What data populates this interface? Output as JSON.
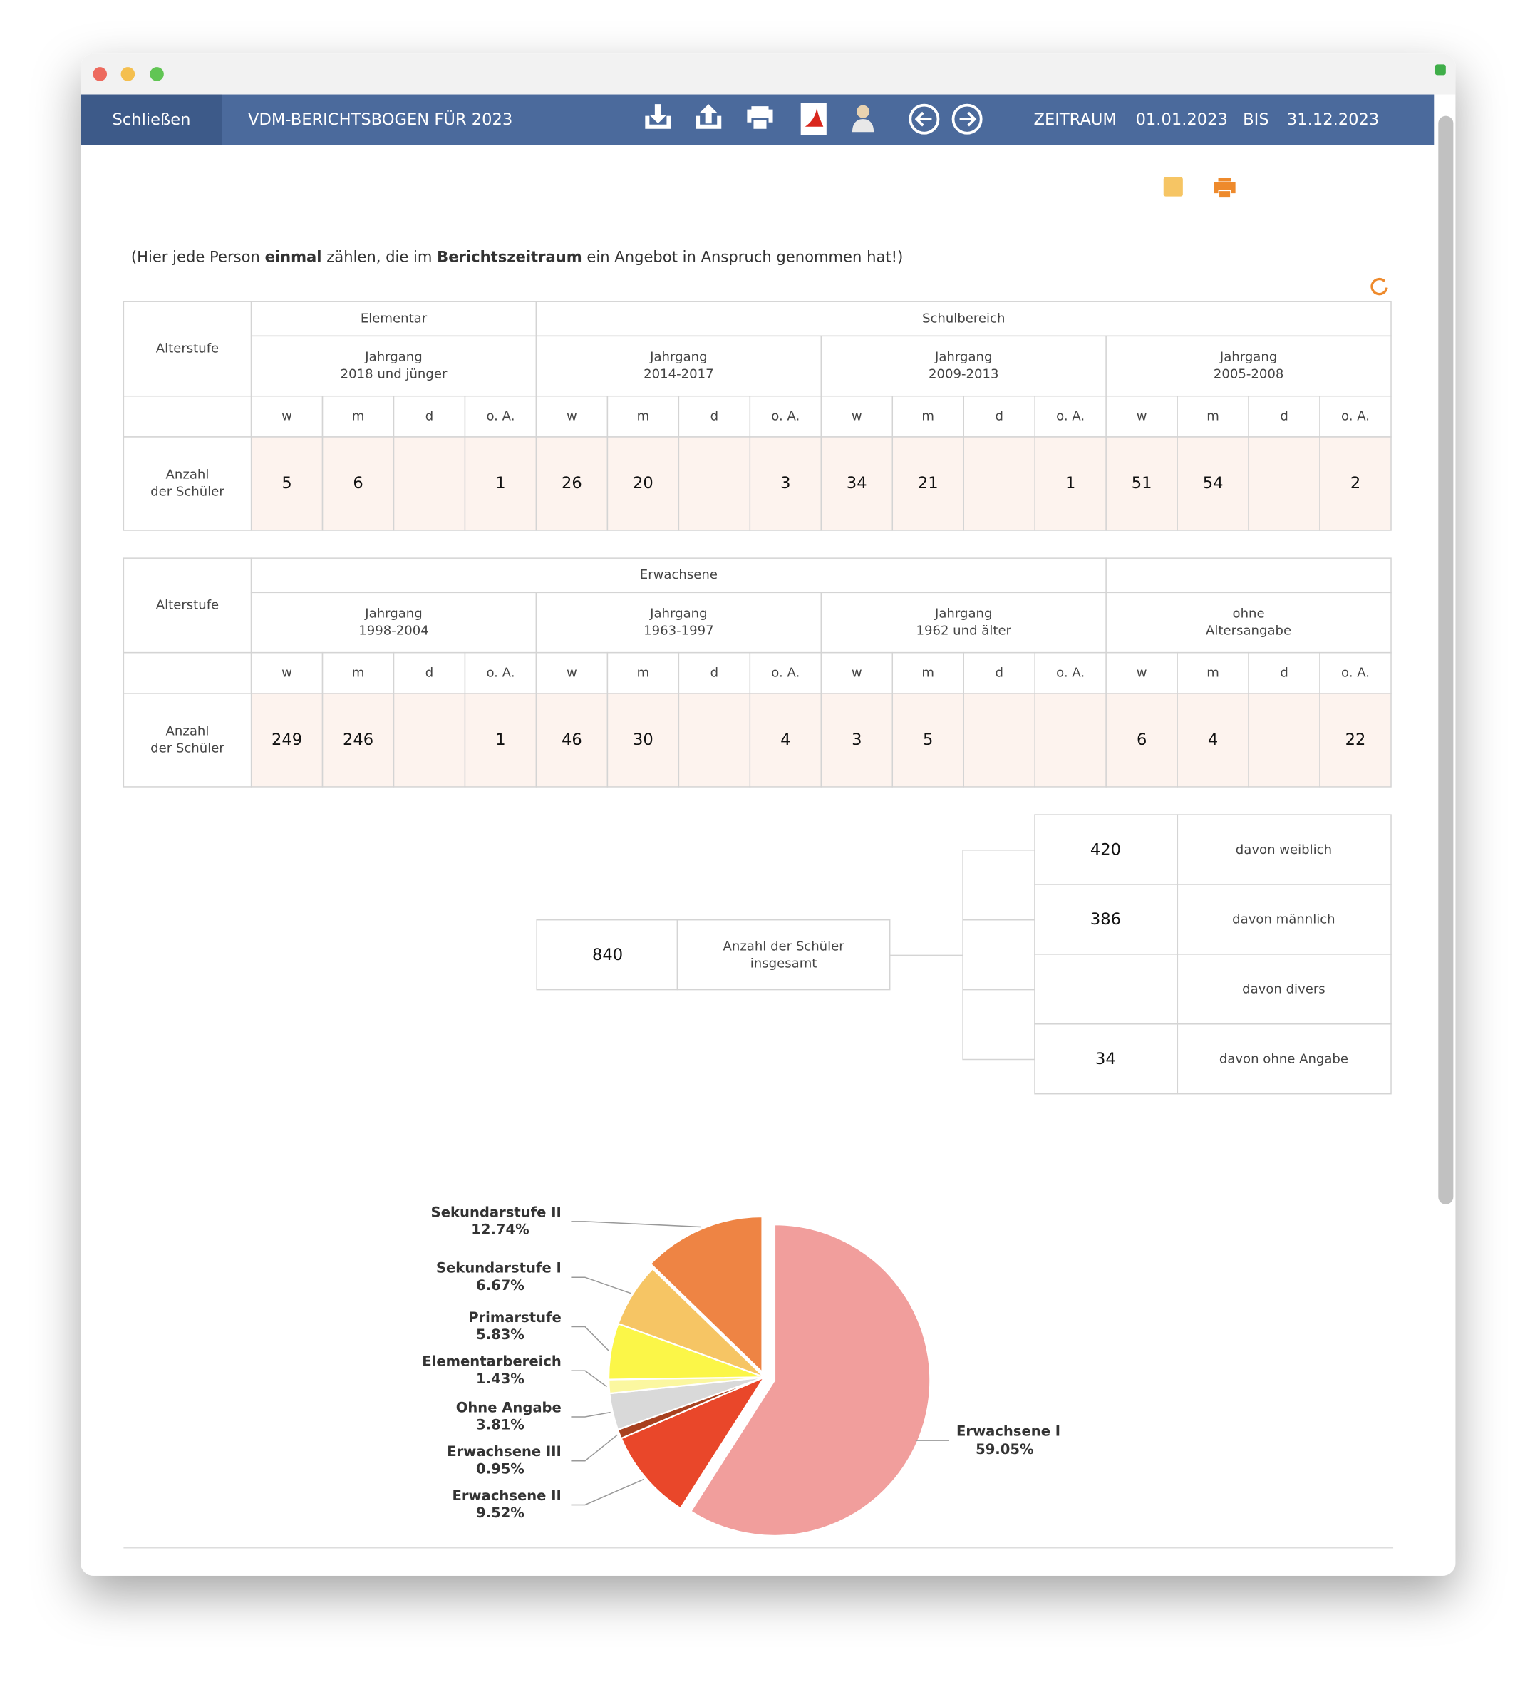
{
  "toolbar": {
    "close": "Schließen",
    "title": "VDM-BERICHTSBOGEN FÜR 2023",
    "period_label": "ZEITRAUM",
    "from": "01.01.2023",
    "to_label": "BIS",
    "to": "31.12.2023"
  },
  "note": [
    "(Hier jede Person ",
    "einmal",
    " zählen, die im ",
    "Berichtszeitraum",
    " ein Angebot in Anspruch genommen hat!)"
  ],
  "tables": [
    {
      "row_header": "Alterstufe",
      "groups": [
        "Elementar",
        "Schulbereich"
      ],
      "cohorts": [
        [
          "Jahrgang",
          "2018 und jünger"
        ],
        [
          "Jahrgang",
          "2014-2017"
        ],
        [
          "Jahrgang",
          "2009-2013"
        ],
        [
          "Jahrgang",
          "2005-2008"
        ]
      ],
      "genders": [
        "w",
        "m",
        "d",
        "o. A."
      ],
      "row_label": [
        "Anzahl",
        "der Schüler"
      ],
      "values": [
        5,
        6,
        null,
        1,
        26,
        20,
        null,
        3,
        34,
        21,
        null,
        1,
        51,
        54,
        null,
        2
      ]
    },
    {
      "row_header": "Alterstufe",
      "groups": [
        "Erwachsene"
      ],
      "cohorts": [
        [
          "Jahrgang",
          "1998-2004"
        ],
        [
          "Jahrgang",
          "1963-1997"
        ],
        [
          "Jahrgang",
          "1962 und älter"
        ],
        [
          "ohne",
          "Altersangabe"
        ]
      ],
      "genders": [
        "w",
        "m",
        "d",
        "o. A."
      ],
      "row_label": [
        "Anzahl",
        "der Schüler"
      ],
      "values": [
        249,
        246,
        null,
        1,
        46,
        30,
        null,
        4,
        3,
        5,
        null,
        null,
        6,
        4,
        null,
        22
      ]
    }
  ],
  "summary": {
    "total": 840,
    "total_label": [
      "Anzahl der Schüler",
      "insgesamt"
    ],
    "breakdown": [
      {
        "value": 420,
        "label": "davon weiblich"
      },
      {
        "value": 386,
        "label": "davon männlich"
      },
      {
        "value": null,
        "label": "davon divers"
      },
      {
        "value": 34,
        "label": "davon ohne Angabe"
      }
    ]
  },
  "chart_data": {
    "type": "pie",
    "categories": [
      "Erwachsene I",
      "Erwachsene II",
      "Erwachsene III",
      "Ohne Angabe",
      "Elementarbereich",
      "Primarstufe",
      "Sekundarstufe I",
      "Sekundarstufe II"
    ],
    "values": [
      59.05,
      9.52,
      0.95,
      3.81,
      1.43,
      5.83,
      6.67,
      12.74
    ],
    "value_labels": [
      "59.05%",
      "9.52%",
      "0.95%",
      "3.81%",
      "1.43%",
      "5.83%",
      "6.67%",
      "12.74%"
    ],
    "colors": [
      "#f19e9c",
      "#e9472a",
      "#a8401f",
      "#d9d9d9",
      "#fbf7a0",
      "#fbf648",
      "#f6c564",
      "#ee8444"
    ]
  }
}
